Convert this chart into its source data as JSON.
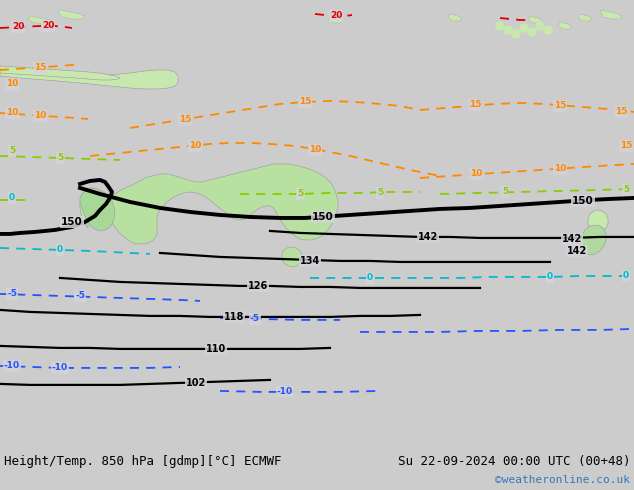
{
  "title_left": "Height/Temp. 850 hPa [gdmp][°C] ECMWF",
  "title_right": "Su 22-09-2024 00:00 UTC (00+48)",
  "credit": "©weatheronline.co.uk",
  "bg_color": "#cccccc",
  "ocean_color": "#d4d4d8",
  "australia_color": "#b8e0a0",
  "land_alt_color": "#c8e8b0",
  "bottom_bar_color": "#e0e0e0",
  "text_color": "#000000",
  "credit_color": "#3377bb",
  "font_size_bottom": 9,
  "orange": "#ff8800",
  "red": "#dd0000",
  "green": "#88cc00",
  "cyan": "#00bbcc",
  "blue": "#2255ff",
  "figsize": [
    6.34,
    4.9
  ],
  "dpi": 100
}
